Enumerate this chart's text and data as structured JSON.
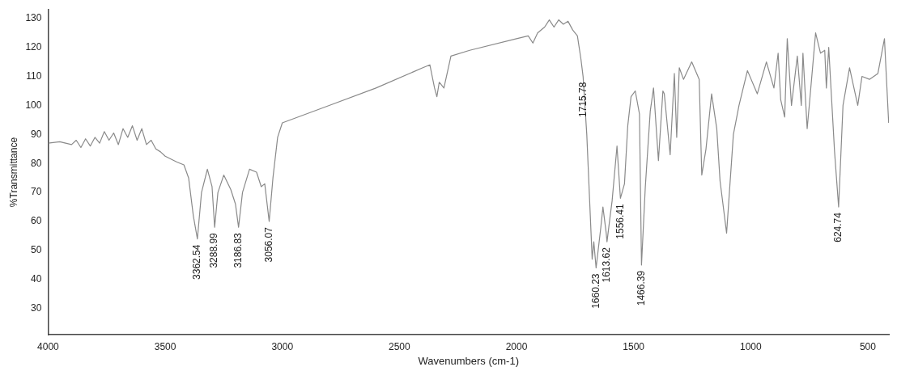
{
  "chart_data": {
    "type": "line",
    "xlabel": "Wavenumbers (cm-1)",
    "ylabel": "%Transmittance",
    "xlim": [
      4000,
      410
    ],
    "xticks": [
      4000,
      3500,
      3000,
      2500,
      2000,
      1500,
      1000,
      500
    ],
    "ylim": [
      21,
      133
    ],
    "yticks": [
      30,
      40,
      50,
      60,
      70,
      80,
      90,
      100,
      110,
      120,
      130
    ],
    "grid": false,
    "legend": false,
    "marker": "none",
    "line_style": "solid",
    "series": [
      {
        "color": "#8a8a8a",
        "x": [
          4000,
          3950,
          3900,
          3880,
          3860,
          3840,
          3820,
          3800,
          3780,
          3760,
          3740,
          3720,
          3700,
          3680,
          3660,
          3640,
          3620,
          3600,
          3580,
          3560,
          3540,
          3520,
          3500,
          3450,
          3420,
          3400,
          3380,
          3362.54,
          3345,
          3320,
          3300,
          3288.99,
          3275,
          3250,
          3220,
          3200,
          3186.83,
          3170,
          3140,
          3110,
          3090,
          3075,
          3056.07,
          3040,
          3020,
          3000,
          2800,
          2600,
          2400,
          2370,
          2350,
          2340,
          2330,
          2310,
          2280,
          2200,
          2000,
          1950,
          1930,
          1910,
          1880,
          1860,
          1840,
          1820,
          1800,
          1780,
          1760,
          1740,
          1725,
          1715.78,
          1700,
          1685,
          1677,
          1670,
          1660.23,
          1640,
          1631,
          1617,
          1613.62,
          1600,
          1592,
          1571,
          1556.41,
          1539,
          1525,
          1511,
          1493,
          1475,
          1466.39,
          1450,
          1429,
          1415,
          1394,
          1375,
          1369,
          1344,
          1326,
          1316,
          1305,
          1287,
          1252,
          1220,
          1209,
          1191,
          1167,
          1145,
          1131,
          1103,
          1074,
          1050,
          1014,
          972,
          933,
          901,
          883,
          872,
          855,
          844,
          826,
          801,
          784,
          777,
          759,
          750,
          723,
          702,
          684,
          677,
          667,
          642,
          624.74,
          606,
          578,
          543,
          525,
          493,
          457,
          429,
          411
        ],
        "values": [
          87,
          87.5,
          86.5,
          88,
          85.5,
          88.5,
          86,
          89,
          87,
          91,
          88,
          90.5,
          86.5,
          92,
          89,
          93,
          88,
          92,
          86.5,
          88,
          85,
          84,
          82.5,
          80.5,
          79.5,
          75,
          62,
          54,
          70,
          78,
          72,
          58,
          70,
          76,
          71,
          66,
          58,
          70,
          78,
          77,
          72,
          73,
          60,
          75,
          89,
          94,
          100,
          106,
          113,
          114,
          106,
          103,
          108,
          106,
          117,
          119,
          123,
          124,
          121.5,
          125,
          127,
          129.5,
          127,
          129.5,
          128,
          129,
          126,
          124,
          116,
          110,
          90,
          62,
          47,
          53,
          44,
          58,
          65,
          56,
          53,
          62,
          67,
          86,
          68,
          73,
          93,
          103,
          105,
          97,
          45,
          72,
          98,
          106,
          81,
          105,
          104,
          83,
          111,
          89,
          113,
          109,
          115,
          109,
          76,
          85,
          104,
          92,
          74,
          56,
          90,
          100,
          112,
          104,
          115,
          106,
          118,
          102,
          96,
          123,
          100,
          117,
          100,
          118,
          92,
          100,
          125,
          118,
          119,
          106,
          120,
          84,
          65,
          100,
          113,
          100,
          110,
          109,
          111,
          123,
          94
        ]
      }
    ],
    "annotations": [
      {
        "text": "3362.54",
        "x": 3362.54,
        "y": 54
      },
      {
        "text": "3288.99",
        "x": 3288.99,
        "y": 58
      },
      {
        "text": "3186.83",
        "x": 3186.83,
        "y": 58
      },
      {
        "text": "3056.07",
        "x": 3056.07,
        "y": 60
      },
      {
        "text": "1715.78",
        "x": 1715.78,
        "y": 110
      },
      {
        "text": "1660.23",
        "x": 1660.23,
        "y": 44
      },
      {
        "text": "1613.62",
        "x": 1613.62,
        "y": 53
      },
      {
        "text": "1556.41",
        "x": 1556.41,
        "y": 68
      },
      {
        "text": "1466.39",
        "x": 1466.39,
        "y": 45
      },
      {
        "text": "624.74",
        "x": 624.74,
        "y": 65
      }
    ]
  }
}
